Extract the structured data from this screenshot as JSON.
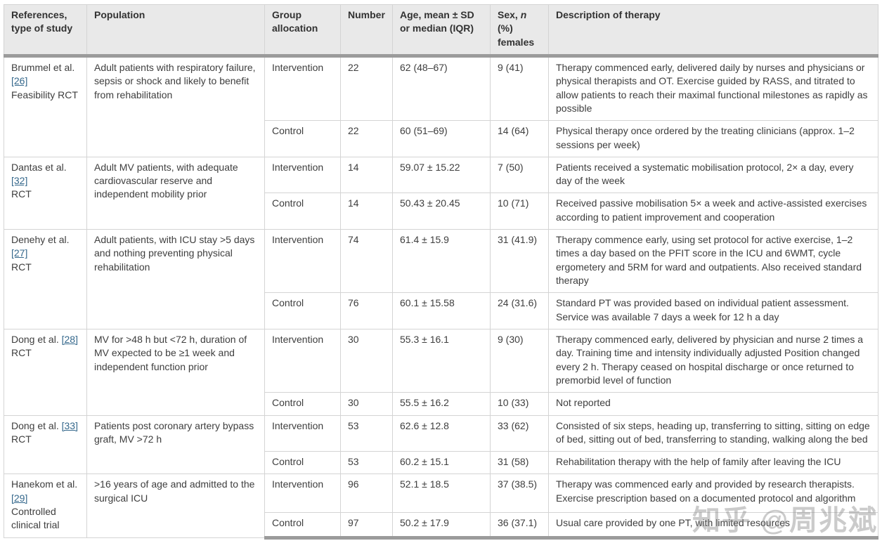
{
  "watermark": {
    "text": "知乎 @周兆斌"
  },
  "table": {
    "headers": {
      "references": "References, type of study",
      "population": "Population",
      "group_allocation": "Group allocation",
      "number": "Number",
      "age": "Age, mean ± SD or median (IQR)",
      "sex_prefix": "Sex, ",
      "sex_n": "n",
      "sex_suffix": " (%) females",
      "therapy": "Description of therapy"
    },
    "studies": [
      {
        "reference": "Brummel et al.",
        "ref_number": "[26]",
        "study_type": "Feasibility RCT",
        "population": "Adult patients with respiratory failure, sepsis or shock and likely to benefit from rehabilitation",
        "rows": [
          {
            "group": "Intervention",
            "number": "22",
            "age": "62 (48–67)",
            "sex": "9 (41)",
            "therapy": "Therapy commenced early, delivered daily by nurses and physicians or physical therapists and OT. Exercise guided by RASS, and titrated to allow patients to reach their maximal functional milestones as rapidly as possible"
          },
          {
            "group": "Control",
            "number": "22",
            "age": "60 (51–69)",
            "sex": "14 (64)",
            "therapy": "Physical therapy once ordered by the treating clinicians (approx. 1–2 sessions per week)"
          }
        ]
      },
      {
        "reference": "Dantas et al.",
        "ref_number": "[32]",
        "study_type": "RCT",
        "population": "Adult MV patients, with adequate cardiovascular reserve and independent mobility prior",
        "rows": [
          {
            "group": "Intervention",
            "number": "14",
            "age": "59.07 ± 15.22",
            "sex": "7 (50)",
            "therapy": "Patients received a systematic mobilisation protocol, 2× a day, every day of the week"
          },
          {
            "group": "Control",
            "number": "14",
            "age": "50.43 ± 20.45",
            "sex": "10 (71)",
            "therapy": "Received passive mobilisation 5× a week and active-assisted exercises according to patient improvement and cooperation"
          }
        ]
      },
      {
        "reference": "Denehy et al.",
        "ref_number": "[27]",
        "study_type": "RCT",
        "population": "Adult patients, with ICU stay >5 days and nothing preventing physical rehabilitation",
        "rows": [
          {
            "group": "Intervention",
            "number": "74",
            "age": "61.4 ± 15.9",
            "sex": "31 (41.9)",
            "therapy": "Therapy commence early, using set protocol for active exercise, 1–2 times a day based on the PFIT score in the ICU and 6WMT, cycle ergometery and 5RM for ward and outpatients. Also received standard therapy"
          },
          {
            "group": "Control",
            "number": "76",
            "age": "60.1 ± 15.58",
            "sex": "24 (31.6)",
            "therapy": "Standard PT was provided based on individual patient assessment. Service was available 7 days a week for 12 h a day"
          }
        ]
      },
      {
        "reference": "Dong et al.",
        "ref_number": "[28]",
        "study_type": "RCT",
        "population": "MV for >48 h but <72 h, duration of MV expected to be ≥1 week and independent function prior",
        "rows": [
          {
            "group": "Intervention",
            "number": "30",
            "age": "55.3 ± 16.1",
            "sex": "9 (30)",
            "therapy": "Therapy commenced early, delivered by physician and nurse 2 times a day. Training time and intensity individually adjusted Position changed every 2 h. Therapy ceased on hospital discharge or once returned to premorbid level of function"
          },
          {
            "group": "Control",
            "number": "30",
            "age": "55.5 ± 16.2",
            "sex": "10 (33)",
            "therapy": "Not reported"
          }
        ]
      },
      {
        "reference": "Dong et al.",
        "ref_number": "[33]",
        "study_type": "RCT",
        "population": "Patients post coronary artery bypass graft, MV >72 h",
        "rows": [
          {
            "group": "Intervention",
            "number": "53",
            "age": "62.6 ± 12.8",
            "sex": "33 (62)",
            "therapy": "Consisted of six steps, heading up, transferring to sitting, sitting on edge of bed, sitting out of bed, transferring to standing, walking along the bed"
          },
          {
            "group": "Control",
            "number": "53",
            "age": "60.2 ± 15.1",
            "sex": "31 (58)",
            "therapy": "Rehabilitation therapy with the help of family after leaving the ICU"
          }
        ]
      },
      {
        "reference": "Hanekom et al.",
        "ref_number": "[29]",
        "study_type": "Controlled clinical trial",
        "population": ">16 years of age and admitted to the surgical ICU",
        "rows": [
          {
            "group": "Intervention",
            "number": "96",
            "age": "52.1 ± 18.5",
            "sex": "37 (38.5)",
            "therapy": "Therapy was commenced early and provided by research therapists. Exercise prescription based on a documented protocol and algorithm"
          },
          {
            "group": "Control",
            "number": "97",
            "age": "50.2 ± 17.9",
            "sex": "36 (37.1)",
            "therapy": "Usual care provided by one PT, with limited resources"
          }
        ]
      }
    ]
  }
}
